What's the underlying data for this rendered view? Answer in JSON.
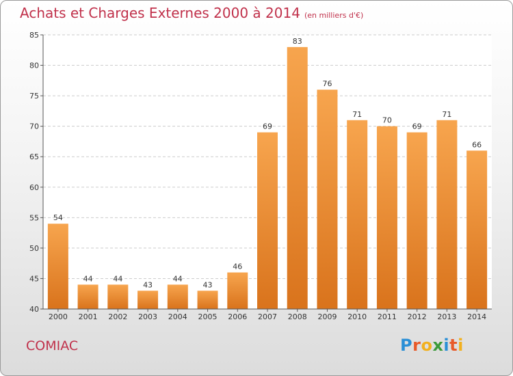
{
  "chart_data": {
    "type": "bar",
    "title": "Achats et Charges Externes 2000 à 2014",
    "subtitle": "(en milliers d'€)",
    "categories": [
      "2000",
      "2001",
      "2002",
      "2003",
      "2004",
      "2005",
      "2006",
      "2007",
      "2008",
      "2009",
      "2010",
      "2011",
      "2012",
      "2013",
      "2014"
    ],
    "values": [
      54,
      44,
      44,
      43,
      44,
      43,
      46,
      69,
      83,
      76,
      71,
      70,
      69,
      71,
      66
    ],
    "ylim": [
      40,
      85
    ],
    "yticks": [
      40,
      45,
      50,
      55,
      60,
      65,
      70,
      75,
      80,
      85
    ],
    "grid": true,
    "bar_color": "#f08c30"
  },
  "commune": "COMIAC",
  "logo": {
    "letters": [
      "P",
      "r",
      "o",
      "x",
      "i",
      "t",
      "i"
    ],
    "colors": [
      "#2a8fd6",
      "#e85a2a",
      "#f2b01e",
      "#3a9a3a",
      "#2a8fd6",
      "#e85a2a",
      "#f2b01e"
    ]
  }
}
